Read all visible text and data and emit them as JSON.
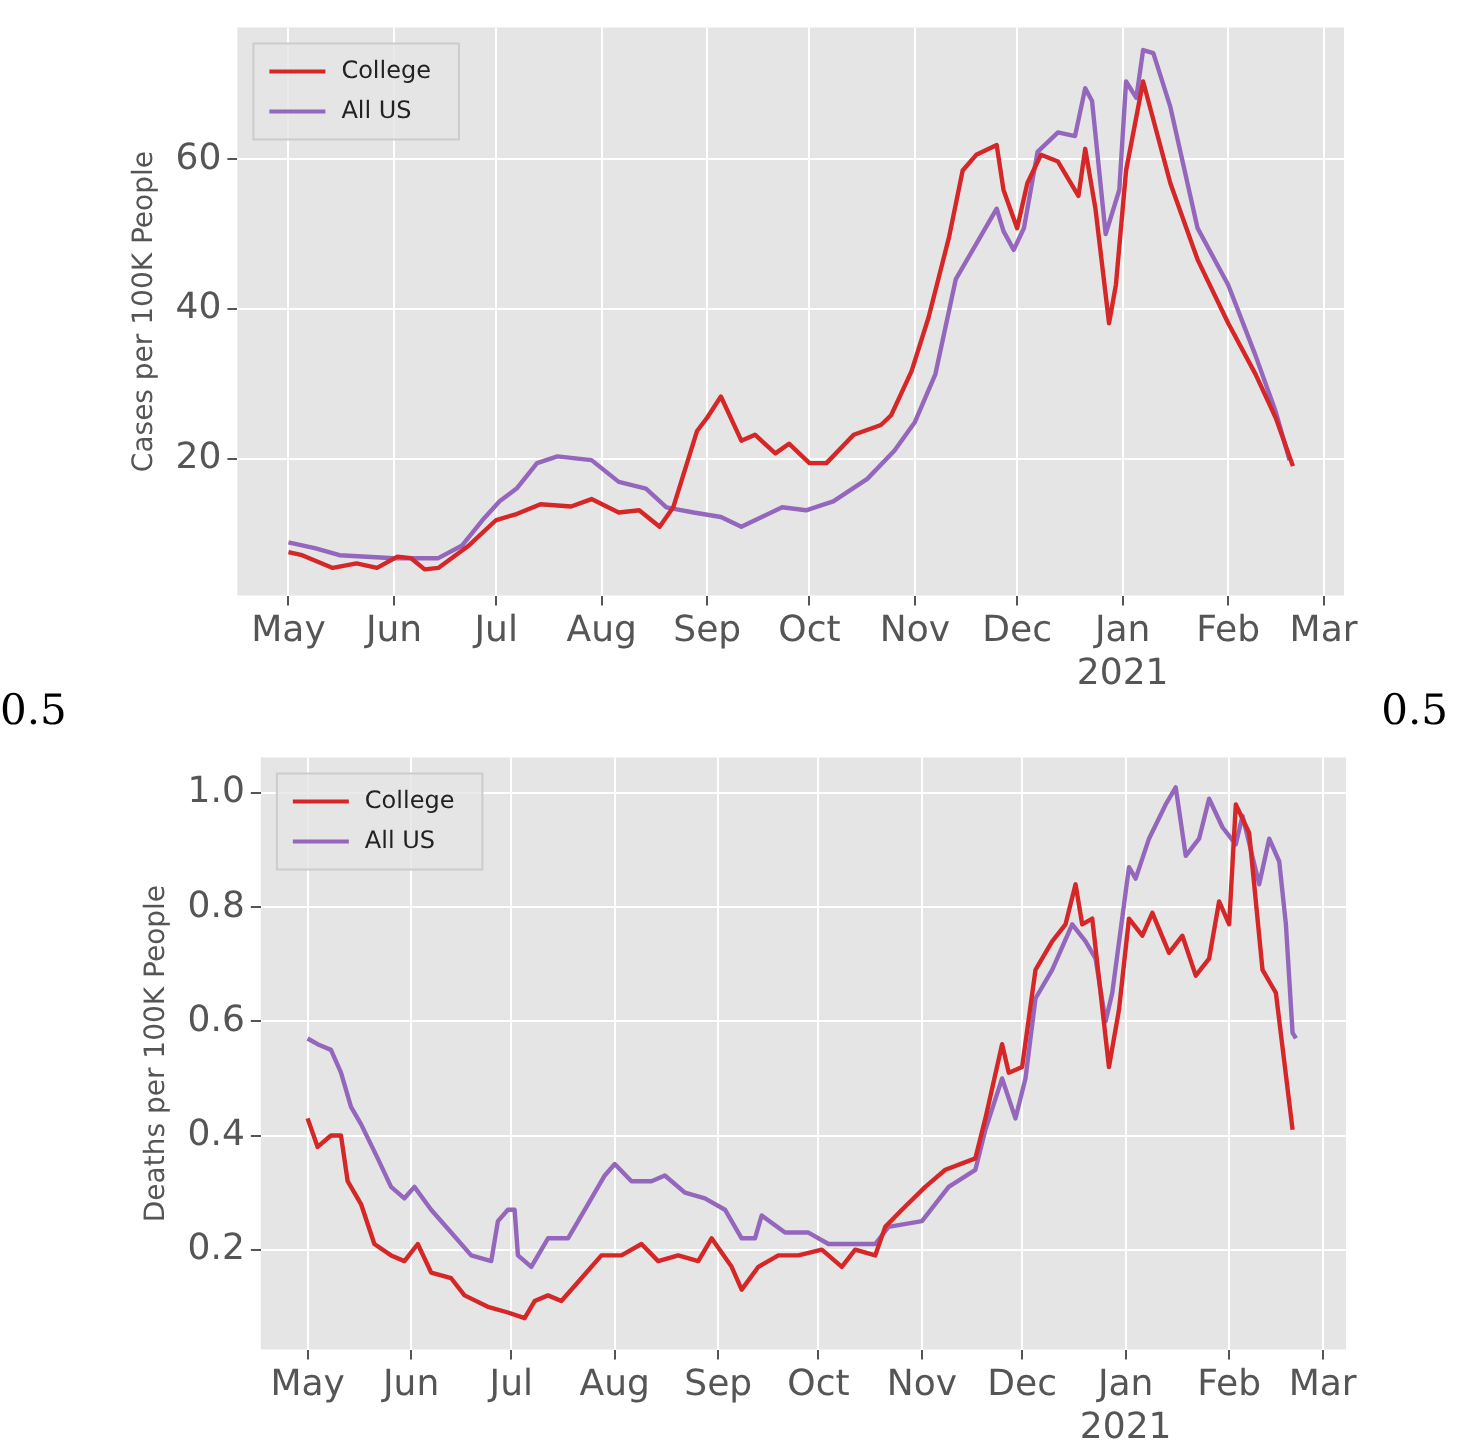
{
  "chart_data": [
    {
      "type": "line",
      "ylabel": "Cases per 100K People",
      "legend": "top left",
      "grid": true,
      "xlim": [
        "2020-04-16",
        "2021-03-07"
      ],
      "ylim": [
        1.7,
        77.6
      ],
      "yticks": [
        20,
        40,
        60
      ],
      "xticks": [
        {
          "value": "2020-05-01",
          "label": "May"
        },
        {
          "value": "2020-06-01",
          "label": "Jun"
        },
        {
          "value": "2020-07-01",
          "label": "Jul"
        },
        {
          "value": "2020-08-01",
          "label": "Aug"
        },
        {
          "value": "2020-09-01",
          "label": "Sep"
        },
        {
          "value": "2020-10-01",
          "label": "Oct"
        },
        {
          "value": "2020-11-01",
          "label": "Nov"
        },
        {
          "value": "2020-12-01",
          "label": "Dec"
        },
        {
          "value": "2021-01-01",
          "label": "Jan\n2021"
        },
        {
          "value": "2021-02-01",
          "label": "Feb"
        },
        {
          "value": "2021-03-01",
          "label": "Mar"
        }
      ],
      "annotations": [
        "0.5",
        "0.5"
      ],
      "series": [
        {
          "name": "College",
          "color": "#d62728",
          "x": [
            "2020-05-01",
            "2020-05-05",
            "2020-05-14",
            "2020-05-21",
            "2020-05-27",
            "2020-06-02",
            "2020-06-06",
            "2020-06-10",
            "2020-06-14",
            "2020-06-23",
            "2020-07-01",
            "2020-07-07",
            "2020-07-14",
            "2020-07-23",
            "2020-07-29",
            "2020-08-06",
            "2020-08-12",
            "2020-08-18",
            "2020-08-22",
            "2020-08-29",
            "2020-09-01",
            "2020-09-05",
            "2020-09-11",
            "2020-09-15",
            "2020-09-21",
            "2020-09-25",
            "2020-10-01",
            "2020-10-06",
            "2020-10-14",
            "2020-10-22",
            "2020-10-25",
            "2020-10-31",
            "2020-11-05",
            "2020-11-11",
            "2020-11-15",
            "2020-11-19",
            "2020-11-25",
            "2020-11-27",
            "2020-12-01",
            "2020-12-04",
            "2020-12-08",
            "2020-12-13",
            "2020-12-19",
            "2020-12-21",
            "2020-12-24",
            "2020-12-28",
            "2020-12-30",
            "2021-01-02",
            "2021-01-07",
            "2021-01-15",
            "2021-01-23",
            "2021-02-01",
            "2021-02-09",
            "2021-02-15",
            "2021-02-20"
          ],
          "values": [
            7.5,
            7.1,
            5.4,
            6.0,
            5.4,
            6.9,
            6.7,
            5.2,
            5.4,
            8.4,
            11.8,
            12.6,
            13.9,
            13.6,
            14.6,
            12.8,
            13.1,
            10.9,
            13.5,
            23.7,
            25.5,
            28.3,
            22.4,
            23.2,
            20.7,
            22.0,
            19.4,
            19.4,
            23.2,
            24.5,
            25.8,
            31.7,
            38.9,
            49.6,
            58.5,
            60.6,
            61.9,
            55.9,
            50.8,
            56.8,
            60.6,
            59.7,
            55.1,
            61.4,
            53.4,
            38.1,
            43.2,
            58.5,
            70.4,
            56.8,
            46.6,
            38.1,
            31.3,
            25.4,
            19.0
          ]
        },
        {
          "name": "All US",
          "color": "#9467bd",
          "x": [
            "2020-05-01",
            "2020-05-09",
            "2020-05-16",
            "2020-05-24",
            "2020-06-01",
            "2020-06-09",
            "2020-06-14",
            "2020-06-21",
            "2020-06-27",
            "2020-07-02",
            "2020-07-07",
            "2020-07-13",
            "2020-07-19",
            "2020-07-29",
            "2020-08-06",
            "2020-08-14",
            "2020-08-20",
            "2020-08-28",
            "2020-09-05",
            "2020-09-11",
            "2020-09-17",
            "2020-09-23",
            "2020-09-30",
            "2020-10-08",
            "2020-10-18",
            "2020-10-26",
            "2020-11-01",
            "2020-11-07",
            "2020-11-13",
            "2020-11-19",
            "2020-11-25",
            "2020-11-27",
            "2020-11-30",
            "2020-12-03",
            "2020-12-07",
            "2020-12-13",
            "2020-12-18",
            "2020-12-21",
            "2020-12-23",
            "2020-12-27",
            "2020-12-31",
            "2021-01-02",
            "2021-01-05",
            "2021-01-07",
            "2021-01-10",
            "2021-01-15",
            "2021-01-23",
            "2021-02-01",
            "2021-02-09",
            "2021-02-15",
            "2021-02-19"
          ],
          "values": [
            8.8,
            8.0,
            7.1,
            6.9,
            6.7,
            6.7,
            6.7,
            8.4,
            11.8,
            14.3,
            16.0,
            19.4,
            20.3,
            19.8,
            16.9,
            16.0,
            13.5,
            12.8,
            12.2,
            10.9,
            12.2,
            13.5,
            13.1,
            14.3,
            17.3,
            21.1,
            24.9,
            31.3,
            44.0,
            48.7,
            53.4,
            50.4,
            47.9,
            50.8,
            61.0,
            63.6,
            63.1,
            69.5,
            67.8,
            50.0,
            55.9,
            70.4,
            68.2,
            74.6,
            74.2,
            67.0,
            50.8,
            43.2,
            33.8,
            26.2,
            19.8
          ]
        }
      ]
    },
    {
      "type": "line",
      "ylabel": "Deaths per 100K People",
      "legend": "top left",
      "grid": true,
      "xlim": [
        "2020-04-17",
        "2021-03-08"
      ],
      "ylim": [
        0.025,
        1.062
      ],
      "yticks": [
        0.2,
        0.4,
        0.6,
        0.8,
        {
          "value": 1,
          "label": "1.0"
        }
      ],
      "xticks": [
        {
          "value": "2020-05-01",
          "label": "May"
        },
        {
          "value": "2020-06-01",
          "label": "Jun"
        },
        {
          "value": "2020-07-01",
          "label": "Jul"
        },
        {
          "value": "2020-08-01",
          "label": "Aug"
        },
        {
          "value": "2020-09-01",
          "label": "Sep"
        },
        {
          "value": "2020-10-01",
          "label": "Oct"
        },
        {
          "value": "2020-11-01",
          "label": "Nov"
        },
        {
          "value": "2020-12-01",
          "label": "Dec"
        },
        {
          "value": "2021-01-01",
          "label": "Jan\n2021"
        },
        {
          "value": "2021-02-01",
          "label": "Feb"
        },
        {
          "value": "2021-03-01",
          "label": "Mar"
        }
      ],
      "series": [
        {
          "name": "College",
          "color": "#d62728",
          "x": [
            "2020-05-01",
            "2020-05-04",
            "2020-05-08",
            "2020-05-11",
            "2020-05-13",
            "2020-05-17",
            "2020-05-21",
            "2020-05-26",
            "2020-05-30",
            "2020-06-03",
            "2020-06-07",
            "2020-06-13",
            "2020-06-17",
            "2020-06-24",
            "2020-06-30",
            "2020-07-05",
            "2020-07-08",
            "2020-07-12",
            "2020-07-16",
            "2020-07-22",
            "2020-07-28",
            "2020-08-03",
            "2020-08-09",
            "2020-08-14",
            "2020-08-20",
            "2020-08-26",
            "2020-08-30",
            "2020-09-05",
            "2020-09-08",
            "2020-09-13",
            "2020-09-19",
            "2020-09-25",
            "2020-10-02",
            "2020-10-08",
            "2020-10-12",
            "2020-10-18",
            "2020-10-21",
            "2020-10-26",
            "2020-11-02",
            "2020-11-08",
            "2020-11-17",
            "2020-11-20",
            "2020-11-25",
            "2020-11-27",
            "2020-12-01",
            "2020-12-05",
            "2020-12-10",
            "2020-12-14",
            "2020-12-17",
            "2020-12-19",
            "2020-12-22",
            "2020-12-27",
            "2020-12-30",
            "2021-01-02",
            "2021-01-06",
            "2021-01-09",
            "2021-01-14",
            "2021-01-18",
            "2021-01-22",
            "2021-01-26",
            "2021-01-29",
            "2021-02-01",
            "2021-02-03",
            "2021-02-07",
            "2021-02-11",
            "2021-02-15",
            "2021-02-20"
          ],
          "values": [
            0.43,
            0.38,
            0.4,
            0.4,
            0.32,
            0.28,
            0.21,
            0.19,
            0.18,
            0.21,
            0.16,
            0.15,
            0.12,
            0.1,
            0.09,
            0.08,
            0.11,
            0.12,
            0.11,
            0.15,
            0.19,
            0.19,
            0.21,
            0.18,
            0.19,
            0.18,
            0.22,
            0.17,
            0.13,
            0.17,
            0.19,
            0.19,
            0.2,
            0.17,
            0.2,
            0.19,
            0.24,
            0.27,
            0.31,
            0.34,
            0.36,
            0.43,
            0.56,
            0.51,
            0.52,
            0.69,
            0.74,
            0.77,
            0.84,
            0.77,
            0.78,
            0.52,
            0.62,
            0.78,
            0.75,
            0.79,
            0.72,
            0.75,
            0.68,
            0.71,
            0.81,
            0.77,
            0.98,
            0.93,
            0.69,
            0.65,
            0.41
          ]
        },
        {
          "name": "All US",
          "color": "#9467bd",
          "x": [
            "2020-05-01",
            "2020-05-04",
            "2020-05-08",
            "2020-05-11",
            "2020-05-14",
            "2020-05-17",
            "2020-05-22",
            "2020-05-26",
            "2020-05-30",
            "2020-06-02",
            "2020-06-07",
            "2020-06-13",
            "2020-06-19",
            "2020-06-25",
            "2020-06-27",
            "2020-06-30",
            "2020-07-02",
            "2020-07-03",
            "2020-07-07",
            "2020-07-12",
            "2020-07-18",
            "2020-07-24",
            "2020-07-29",
            "2020-08-01",
            "2020-08-06",
            "2020-08-12",
            "2020-08-16",
            "2020-08-22",
            "2020-08-28",
            "2020-09-03",
            "2020-09-08",
            "2020-09-12",
            "2020-09-14",
            "2020-09-21",
            "2020-09-28",
            "2020-10-04",
            "2020-10-10",
            "2020-10-18",
            "2020-10-22",
            "2020-11-01",
            "2020-11-09",
            "2020-11-17",
            "2020-11-20",
            "2020-11-25",
            "2020-11-29",
            "2020-12-02",
            "2020-12-05",
            "2020-12-10",
            "2020-12-16",
            "2020-12-20",
            "2020-12-23",
            "2020-12-26",
            "2020-12-28",
            "2021-01-02",
            "2021-01-04",
            "2021-01-08",
            "2021-01-13",
            "2021-01-16",
            "2021-01-19",
            "2021-01-23",
            "2021-01-26",
            "2021-01-30",
            "2021-02-03",
            "2021-02-05",
            "2021-02-10",
            "2021-02-13",
            "2021-02-16",
            "2021-02-18",
            "2021-02-20",
            "2021-02-21"
          ],
          "values": [
            0.57,
            0.56,
            0.55,
            0.51,
            0.45,
            0.42,
            0.36,
            0.31,
            0.29,
            0.31,
            0.27,
            0.23,
            0.19,
            0.18,
            0.25,
            0.27,
            0.27,
            0.19,
            0.17,
            0.22,
            0.22,
            0.28,
            0.33,
            0.35,
            0.32,
            0.32,
            0.33,
            0.3,
            0.29,
            0.27,
            0.22,
            0.22,
            0.26,
            0.23,
            0.23,
            0.21,
            0.21,
            0.21,
            0.24,
            0.25,
            0.31,
            0.34,
            0.41,
            0.5,
            0.43,
            0.5,
            0.64,
            0.69,
            0.77,
            0.74,
            0.71,
            0.6,
            0.65,
            0.87,
            0.85,
            0.92,
            0.98,
            1.01,
            0.89,
            0.92,
            0.99,
            0.94,
            0.91,
            0.96,
            0.84,
            0.92,
            0.88,
            0.77,
            0.58,
            0.57
          ]
        }
      ]
    }
  ]
}
